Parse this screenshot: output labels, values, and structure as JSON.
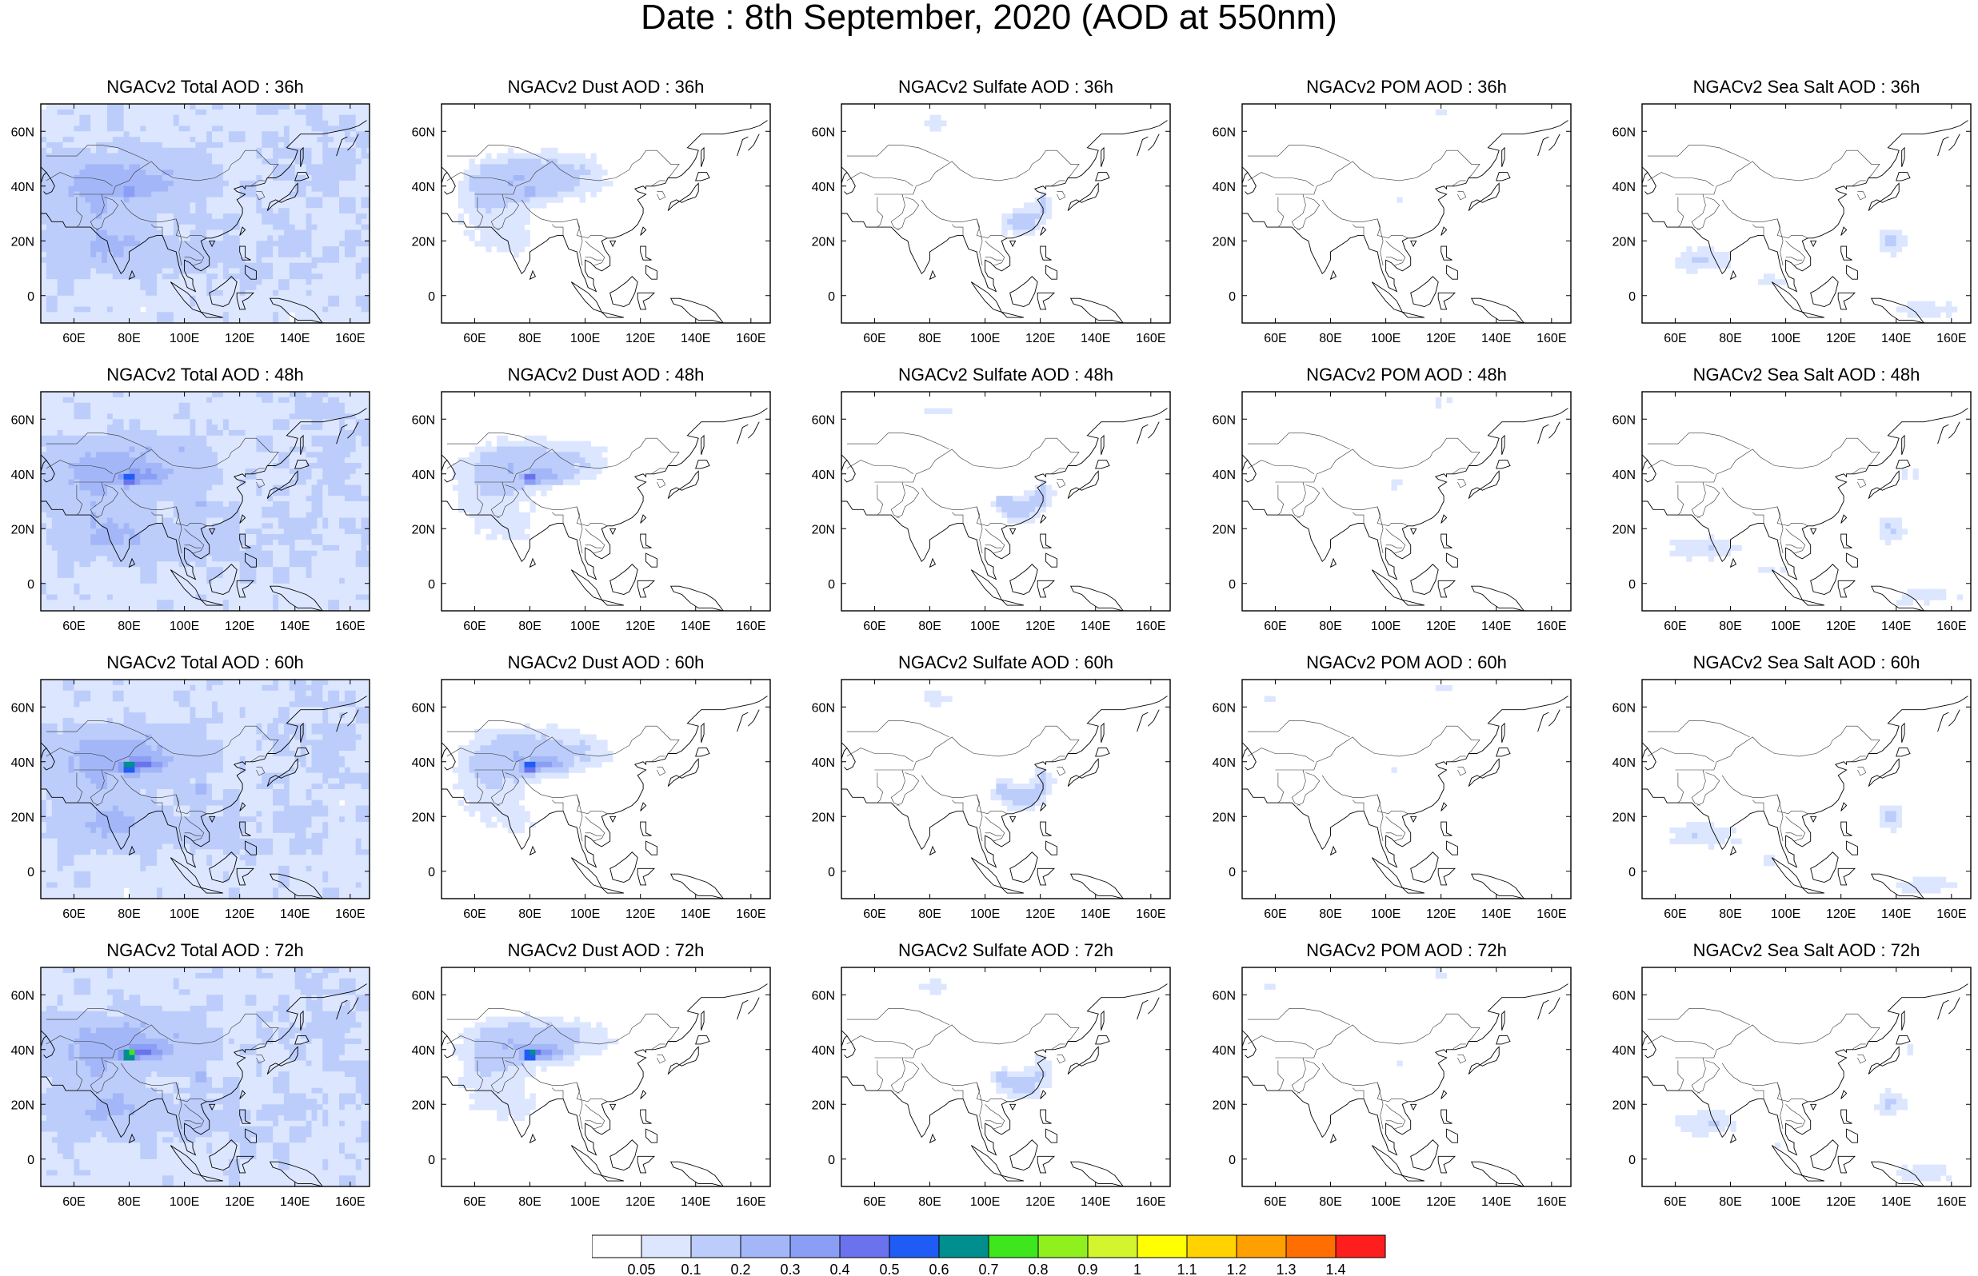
{
  "title": "Date : 8th September, 2020 (AOD at 550nm)",
  "map": {
    "lon_ticks": [
      "60E",
      "80E",
      "100E",
      "120E",
      "140E",
      "160E"
    ],
    "lat_ticks": [
      "60N",
      "40N",
      "20N",
      "0"
    ],
    "lon_values": [
      60,
      80,
      100,
      120,
      140,
      160
    ],
    "lat_values": [
      60,
      40,
      20,
      0
    ],
    "lon_range": [
      48,
      167
    ],
    "lat_range": [
      -10,
      70
    ]
  },
  "rows": [
    {
      "lead": "36h",
      "panels": [
        {
          "title": "NGACv2 Total AOD : 36h",
          "species": "total"
        },
        {
          "title": "NGACv2 Dust AOD : 36h",
          "species": "dust"
        },
        {
          "title": "NGACv2 Sulfate AOD : 36h",
          "species": "sulfate"
        },
        {
          "title": "NGACv2 POM AOD : 36h",
          "species": "pom"
        },
        {
          "title": "NGACv2 Sea Salt AOD : 36h",
          "species": "seasalt"
        }
      ]
    },
    {
      "lead": "48h",
      "panels": [
        {
          "title": "NGACv2 Total AOD : 48h",
          "species": "total"
        },
        {
          "title": "NGACv2 Dust AOD : 48h",
          "species": "dust"
        },
        {
          "title": "NGACv2 Sulfate AOD : 48h",
          "species": "sulfate"
        },
        {
          "title": "NGACv2 POM AOD : 48h",
          "species": "pom"
        },
        {
          "title": "NGACv2 Sea Salt AOD : 48h",
          "species": "seasalt"
        }
      ]
    },
    {
      "lead": "60h",
      "panels": [
        {
          "title": "NGACv2 Total AOD : 60h",
          "species": "total"
        },
        {
          "title": "NGACv2 Dust AOD : 60h",
          "species": "dust"
        },
        {
          "title": "NGACv2 Sulfate AOD : 60h",
          "species": "sulfate"
        },
        {
          "title": "NGACv2 POM AOD : 60h",
          "species": "pom"
        },
        {
          "title": "NGACv2 Sea Salt AOD : 60h",
          "species": "seasalt"
        }
      ]
    },
    {
      "lead": "72h",
      "panels": [
        {
          "title": "NGACv2 Total AOD : 72h",
          "species": "total"
        },
        {
          "title": "NGACv2 Dust AOD : 72h",
          "species": "dust"
        },
        {
          "title": "NGACv2 Sulfate AOD : 72h",
          "species": "sulfate"
        },
        {
          "title": "NGACv2 POM AOD : 72h",
          "species": "pom"
        },
        {
          "title": "NGACv2 Sea Salt  AOD : 72h",
          "species": "seasalt"
        }
      ]
    }
  ],
  "colorbar": {
    "labels": [
      "0.05",
      "0.1",
      "0.2",
      "0.3",
      "0.4",
      "0.5",
      "0.6",
      "0.7",
      "0.8",
      "0.9",
      "1",
      "1.1",
      "1.2",
      "1.3",
      "1.4"
    ],
    "colors": [
      "#ffffff",
      "#dce6ff",
      "#bccdfb",
      "#a3b7f8",
      "#8a9ef5",
      "#6b72ee",
      "#1e5cf5",
      "#008e8e",
      "#3ee61e",
      "#8ff01e",
      "#d2f52d",
      "#ffff00",
      "#ffd200",
      "#ffa000",
      "#ff6e00",
      "#ff1e1e"
    ]
  }
}
